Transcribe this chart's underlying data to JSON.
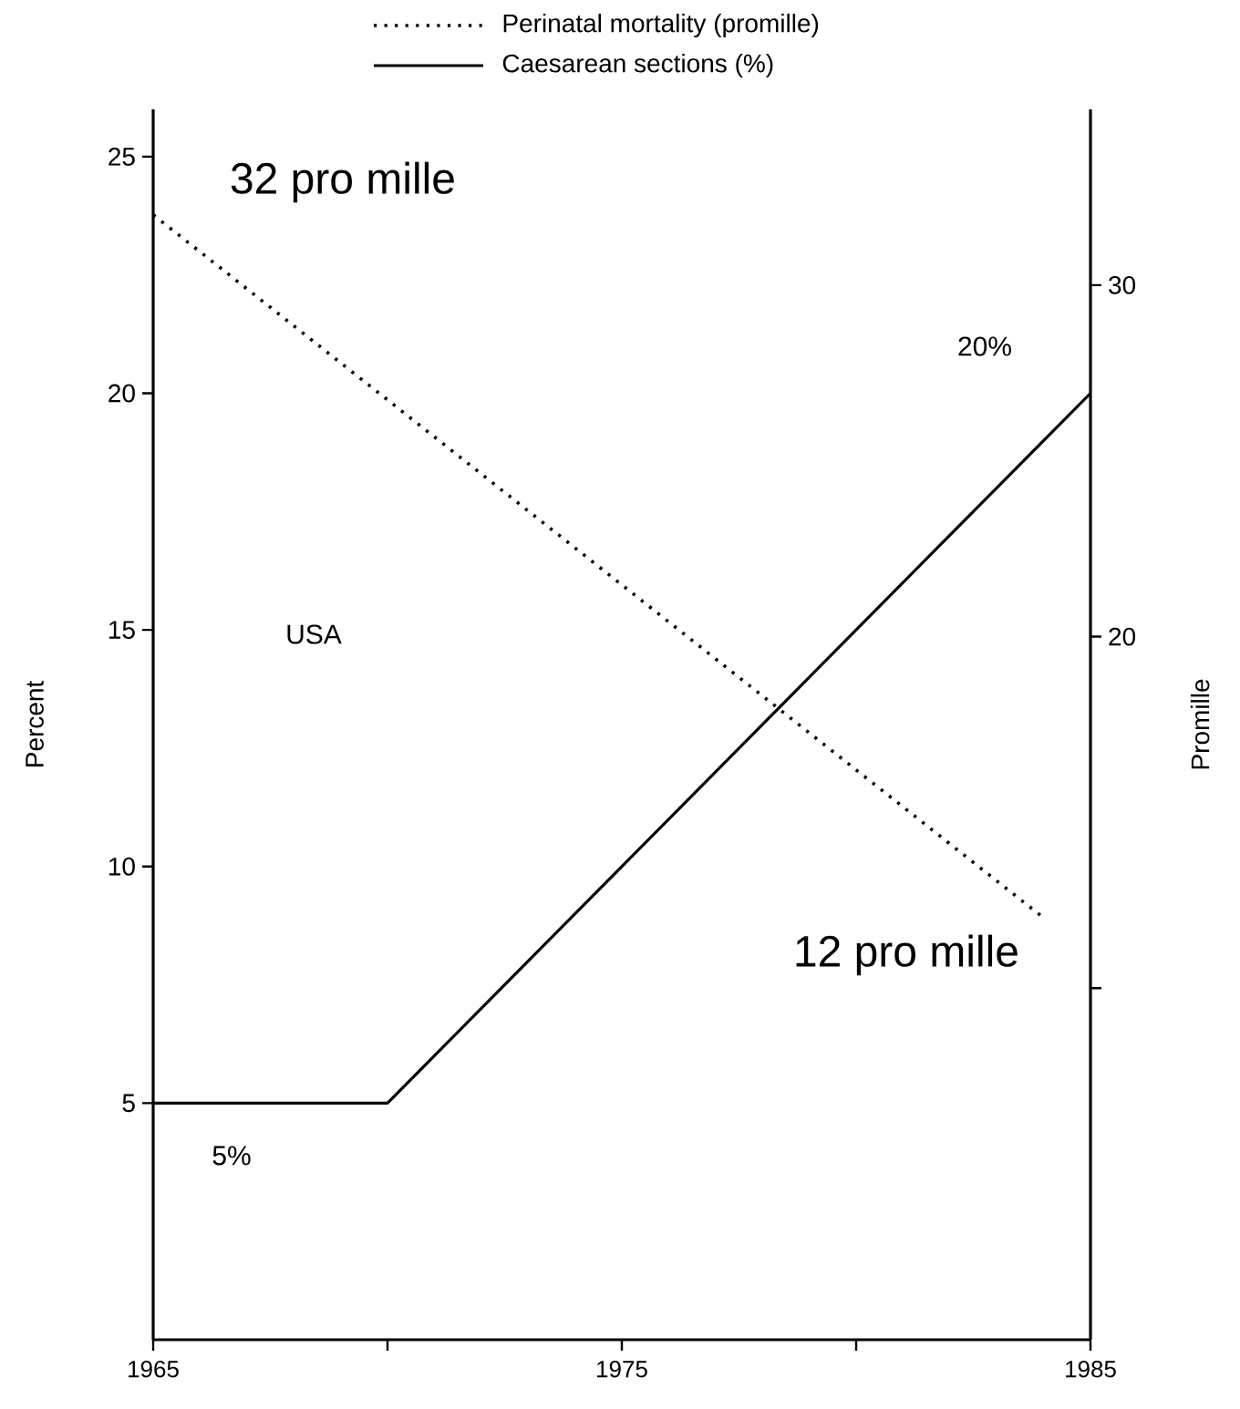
{
  "chart_data": {
    "type": "line",
    "xlabel": null,
    "ylabel": "Percent",
    "y2label": "Promille",
    "xlim": [
      1965,
      1985
    ],
    "xticks": [
      1965,
      {
        "value": 1970,
        "label": null
      },
      1975,
      {
        "value": 1980,
        "label": null
      },
      1985
    ],
    "ylim": [
      0,
      26
    ],
    "yticks": [
      5,
      10,
      15,
      20,
      25
    ],
    "y2lim": [
      0,
      35
    ],
    "y2ticks": [
      {
        "value": 10,
        "label": null
      },
      20,
      30
    ],
    "legend": "top",
    "grid": false,
    "series": [
      {
        "name": "Perinatal mortality (promille)",
        "color": "#000000",
        "line_style": "dotted",
        "axis": "y2",
        "x": [
          1965,
          1984
        ],
        "values": [
          32,
          12
        ]
      },
      {
        "name": "Caesarean sections (%)",
        "color": "#000000",
        "line_style": "solid",
        "x": [
          1965,
          1970,
          1985
        ],
        "values": [
          5,
          5,
          20
        ]
      }
    ],
    "annotations": [
      "32 pro mille",
      "20%",
      "USA",
      "12 pro mille",
      "5%"
    ]
  }
}
